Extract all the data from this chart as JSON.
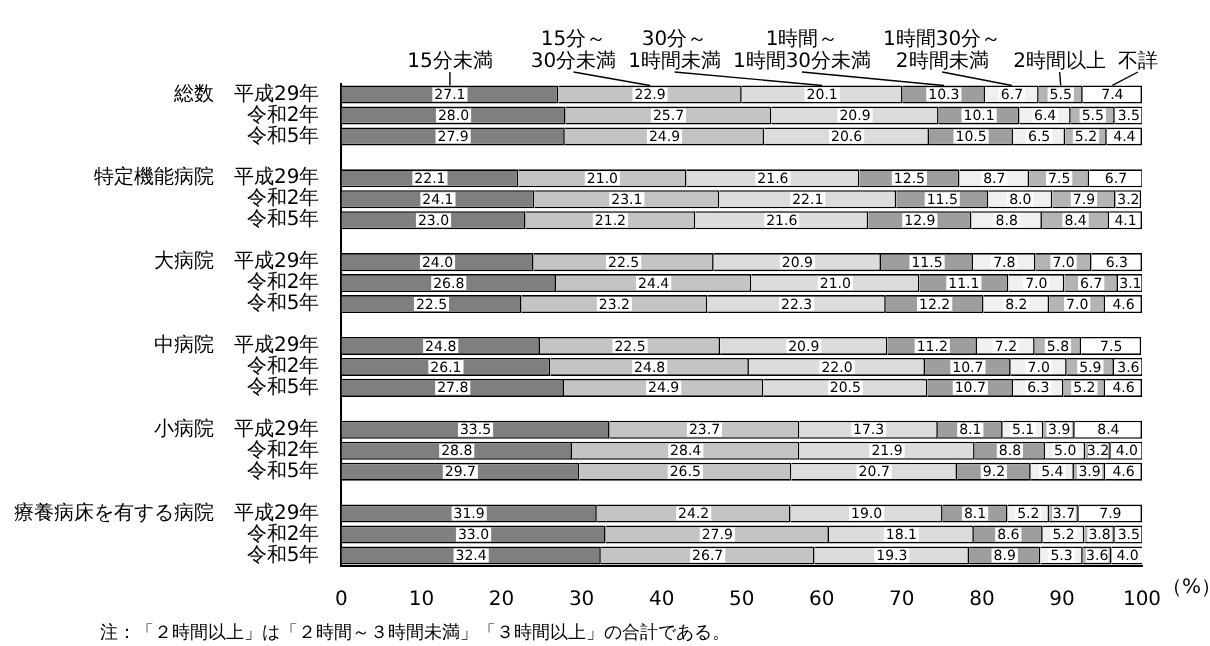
{
  "chart_data": {
    "type": "bar",
    "orientation": "horizontal",
    "stacked": true,
    "xlabel": "（%）",
    "categories": [
      "総数　平成29年",
      "令和2年",
      "令和5年",
      null,
      "特定機能病院　平成29年",
      "令和2年",
      "令和5年",
      null,
      "大病院　平成29年",
      "令和2年",
      "令和5年",
      null,
      "中病院　平成29年",
      "令和2年",
      "令和5年",
      null,
      "小病院　平成29年",
      "令和2年",
      "令和5年",
      null,
      "療養病床を有する病院　平成29年",
      "令和2年",
      "令和5年"
    ],
    "series": [
      {
        "name": "15分未満",
        "color": "#7f7f7f",
        "values": [
          27.1,
          28.0,
          27.9,
          null,
          22.1,
          24.1,
          23.0,
          null,
          24.0,
          26.8,
          22.5,
          null,
          24.8,
          26.1,
          27.8,
          null,
          33.5,
          28.8,
          29.7,
          null,
          31.9,
          33.0,
          32.4
        ],
        "value_labels": [
          "27.1",
          "28.0",
          "27.9",
          null,
          "22.1",
          "24.1",
          "23.0",
          null,
          "24.0",
          "26.8",
          "22.5",
          null,
          "24.8",
          "26.1",
          "27.8",
          null,
          "33.5",
          "28.8",
          "29.7",
          null,
          "31.9",
          "33.0",
          "32.4"
        ]
      },
      {
        "name": "15分～30分未満",
        "color": "#c4c4c4",
        "values": [
          22.9,
          25.7,
          24.9,
          null,
          21.0,
          23.1,
          21.2,
          null,
          22.5,
          24.4,
          23.2,
          null,
          22.5,
          24.8,
          24.9,
          null,
          23.7,
          28.4,
          26.5,
          null,
          24.2,
          27.9,
          26.7
        ],
        "value_labels": [
          "22.9",
          "25.7",
          "24.9",
          null,
          "21.0",
          "23.1",
          "21.2",
          null,
          "22.5",
          "24.4",
          "23.2",
          null,
          "22.5",
          "24.8",
          "24.9",
          null,
          "23.7",
          "28.4",
          "26.5",
          null,
          "24.2",
          "27.9",
          "26.7"
        ]
      },
      {
        "name": "30分～1時間未満",
        "color": "#dcdcdc",
        "values": [
          20.1,
          20.9,
          20.6,
          null,
          21.6,
          22.1,
          21.6,
          null,
          20.9,
          21.0,
          22.3,
          null,
          20.9,
          22.0,
          20.5,
          null,
          17.3,
          21.9,
          20.7,
          null,
          19.0,
          18.1,
          19.3
        ],
        "value_labels": [
          "20.1",
          "20.9",
          "20.6",
          null,
          "21.6",
          "22.1",
          "21.6",
          null,
          "20.9",
          "21.0",
          "22.3",
          null,
          "20.9",
          "22.0",
          "20.5",
          null,
          "17.3",
          "21.9",
          "20.7",
          null,
          "19.0",
          "18.1",
          "19.3"
        ]
      },
      {
        "name": "1時間～1時間30分未満",
        "color": "#9e9e9e",
        "values": [
          10.3,
          10.1,
          10.5,
          null,
          12.5,
          11.5,
          12.9,
          null,
          11.5,
          11.1,
          12.2,
          null,
          11.2,
          10.7,
          10.7,
          null,
          8.1,
          8.8,
          9.2,
          null,
          8.1,
          8.6,
          8.9
        ],
        "value_labels": [
          "10.3",
          "10.1",
          "10.5",
          null,
          "12.5",
          "11.5",
          "12.9",
          null,
          "11.5",
          "11.1",
          "12.2",
          null,
          "11.2",
          "10.7",
          "10.7",
          null,
          "8.1",
          "8.8",
          "9.2",
          null,
          "8.1",
          "8.6",
          "8.9"
        ]
      },
      {
        "name": "1時間30分～2時間未満",
        "color": "#f0f0f0",
        "values": [
          6.7,
          6.4,
          6.5,
          null,
          8.7,
          8.0,
          8.8,
          null,
          7.8,
          7.0,
          8.2,
          null,
          7.2,
          7.0,
          6.3,
          null,
          5.1,
          5.0,
          5.4,
          null,
          5.2,
          5.2,
          5.3
        ],
        "value_labels": [
          "6.7",
          "6.4",
          "6.5",
          null,
          "8.7",
          "8.0",
          "8.8",
          null,
          "7.8",
          "7.0",
          "8.2",
          null,
          "7.2",
          "7.0",
          "6.3",
          null,
          "5.1",
          "5.0",
          "5.4",
          null,
          "5.2",
          "5.2",
          "5.3"
        ]
      },
      {
        "name": "2時間以上",
        "color": "#b4b4b4",
        "values": [
          5.5,
          5.5,
          5.2,
          null,
          7.5,
          7.9,
          8.4,
          null,
          7.0,
          6.7,
          7.0,
          null,
          5.8,
          5.9,
          5.2,
          null,
          3.9,
          3.2,
          3.9,
          null,
          3.7,
          3.8,
          3.6
        ],
        "value_labels": [
          "5.5",
          "5.5",
          "5.2",
          null,
          "7.5",
          "7.9",
          "8.4",
          null,
          "7.0",
          "6.7",
          "7.0",
          null,
          "5.8",
          "5.9",
          "5.2",
          null,
          "3.9",
          "3.2",
          "3.9",
          null,
          "3.7",
          "3.8",
          "3.6"
        ]
      },
      {
        "name": "不詳",
        "color": "#ffffff",
        "values": [
          7.4,
          3.5,
          4.4,
          null,
          6.7,
          3.2,
          4.1,
          null,
          6.3,
          3.1,
          4.6,
          null,
          7.5,
          3.6,
          4.6,
          null,
          8.4,
          4.0,
          4.6,
          null,
          7.9,
          3.5,
          4.0
        ],
        "value_labels": [
          "7.4",
          "3.5",
          "4.4",
          null,
          "6.7",
          "3.2",
          "4.1",
          null,
          "6.3",
          "3.1",
          "4.6",
          null,
          "7.5",
          "3.6",
          "4.6",
          null,
          "8.4",
          "4.0",
          "4.6",
          null,
          "7.9",
          "3.5",
          "4.0"
        ]
      }
    ],
    "xlim": [
      0,
      100
    ],
    "xticks": [
      0,
      10,
      20,
      30,
      40,
      50,
      60,
      70,
      80,
      90,
      100
    ],
    "grid": false,
    "legend": "top",
    "annotations": [
      "注：「２時間以上」は「２時間～３時間未満」「３時間以上」の合計である。"
    ]
  }
}
